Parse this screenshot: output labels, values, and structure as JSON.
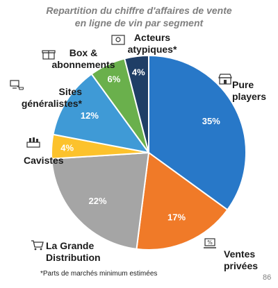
{
  "chart_data": {
    "type": "pie",
    "title_lines": [
      "Repartition du chiffre d'affaires de vente",
      "en ligne de vin par segment"
    ],
    "slices": [
      {
        "label": "Pure players",
        "value": 35,
        "display": "35%",
        "color": "#2878c8"
      },
      {
        "label": "Ventes privées",
        "value": 17,
        "display": "17%",
        "color": "#f07a28"
      },
      {
        "label": "La Grande Distribution",
        "value": 22,
        "display": "22%",
        "color": "#a5a5a5"
      },
      {
        "label": "Cavistes",
        "value": 4,
        "display": "4%",
        "color": "#fcc22c"
      },
      {
        "label": "Sites généralistes*",
        "value": 12,
        "display": "12%",
        "color": "#3f9ad6"
      },
      {
        "label": "Box & abonnements",
        "value": 6,
        "display": "6%",
        "color": "#6ab04c"
      },
      {
        "label": "Acteurs atypiques*",
        "value": 4,
        "display": "4%",
        "color": "#1f3e66"
      }
    ]
  },
  "labels": {
    "pure_players": [
      "Pure",
      "players"
    ],
    "ventes_privees": [
      "Ventes",
      "privées"
    ],
    "grande_distribution": [
      "La Grande",
      "Distribution"
    ],
    "cavistes": "Cavistes",
    "sites_generalistes": [
      "Sites",
      "généralistes*"
    ],
    "box_abonnements": [
      "Box &",
      "abonnements"
    ],
    "acteurs_atypiques": [
      "Acteurs",
      "atypiques*"
    ]
  },
  "footnote": "*Parts de marchés minimum estimées",
  "page_number": "86",
  "icons": [
    "storefront-icon",
    "laptop-percent-icon",
    "shopping-cart-icon",
    "wine-bottles-icon",
    "computer-cart-icon",
    "gift-box-icon",
    "lightbulb-screen-icon"
  ]
}
